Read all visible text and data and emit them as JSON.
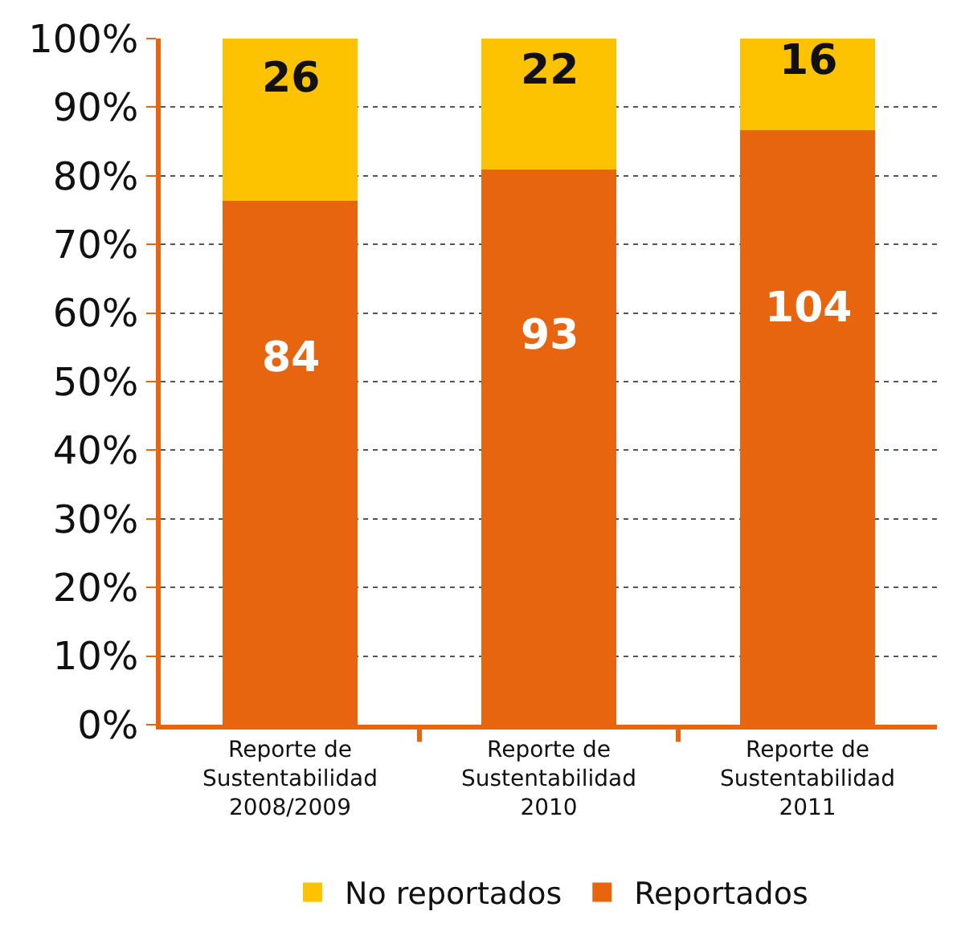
{
  "chart_data": {
    "type": "bar",
    "stacked": true,
    "categories": [
      "Reporte de\nSustentabilidad\n2008/2009",
      "Reporte de\nSustentabilidad\n2010",
      "Reporte de\nSustentabilidad\n2011"
    ],
    "series": [
      {
        "name": "Reportados",
        "color": "#e8650f",
        "values": [
          76.4,
          80.9,
          86.7
        ]
      },
      {
        "name": "No reportados",
        "color": "#fdc300",
        "values": [
          23.6,
          19.1,
          13.3
        ]
      }
    ],
    "annotations": [
      "84",
      "93",
      "104",
      "26",
      "22",
      "16"
    ],
    "ylim": [
      0,
      100
    ],
    "yticks": [
      {
        "value": 0,
        "label": "0%"
      },
      {
        "value": 10,
        "label": "10%"
      },
      {
        "value": 20,
        "label": "20%"
      },
      {
        "value": 30,
        "label": "30%"
      },
      {
        "value": 40,
        "label": "40%"
      },
      {
        "value": 50,
        "label": "50%"
      },
      {
        "value": 60,
        "label": "60%"
      },
      {
        "value": 70,
        "label": "70%"
      },
      {
        "value": 80,
        "label": "80%"
      },
      {
        "value": 90,
        "label": "90%"
      },
      {
        "value": 100,
        "label": "100%"
      }
    ],
    "grid": "y",
    "legend": "bottom"
  }
}
